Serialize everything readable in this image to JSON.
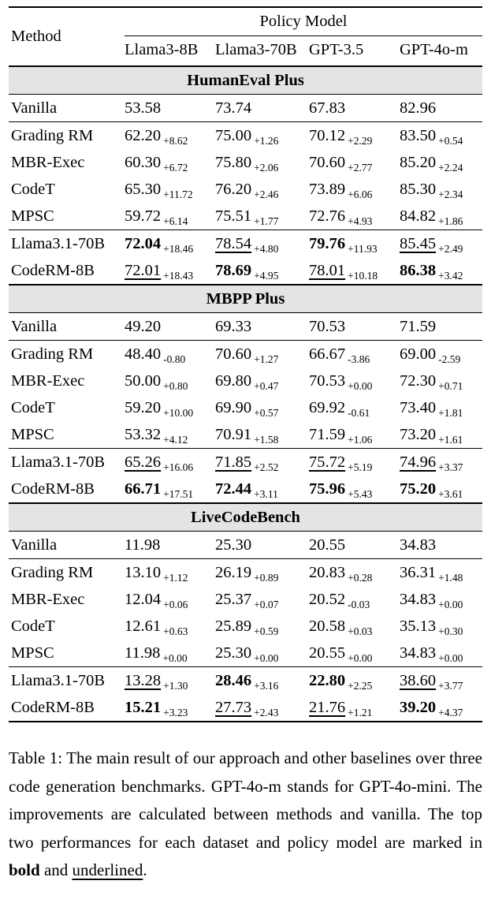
{
  "header": {
    "method_label": "Method",
    "group_label": "Policy Model",
    "columns": [
      "Llama3-8B",
      "Llama3-70B",
      "GPT-3.5",
      "GPT-4o-m"
    ]
  },
  "sections": [
    {
      "title": "HumanEval Plus",
      "groups": [
        {
          "rows": [
            {
              "method": "Vanilla",
              "cells": [
                {
                  "value": "53.58",
                  "delta": null,
                  "style": "plain"
                },
                {
                  "value": "73.74",
                  "delta": null,
                  "style": "plain"
                },
                {
                  "value": "67.83",
                  "delta": null,
                  "style": "plain"
                },
                {
                  "value": "82.96",
                  "delta": null,
                  "style": "plain"
                }
              ]
            }
          ]
        },
        {
          "rows": [
            {
              "method": "Grading RM",
              "cells": [
                {
                  "value": "62.20",
                  "delta": "+8.62",
                  "style": "plain"
                },
                {
                  "value": "75.00",
                  "delta": "+1.26",
                  "style": "plain"
                },
                {
                  "value": "70.12",
                  "delta": "+2.29",
                  "style": "plain"
                },
                {
                  "value": "83.50",
                  "delta": "+0.54",
                  "style": "plain"
                }
              ]
            },
            {
              "method": "MBR-Exec",
              "cells": [
                {
                  "value": "60.30",
                  "delta": "+6.72",
                  "style": "plain"
                },
                {
                  "value": "75.80",
                  "delta": "+2.06",
                  "style": "plain"
                },
                {
                  "value": "70.60",
                  "delta": "+2.77",
                  "style": "plain"
                },
                {
                  "value": "85.20",
                  "delta": "+2.24",
                  "style": "plain"
                }
              ]
            },
            {
              "method": "CodeT",
              "cells": [
                {
                  "value": "65.30",
                  "delta": "+11.72",
                  "style": "plain"
                },
                {
                  "value": "76.20",
                  "delta": "+2.46",
                  "style": "plain"
                },
                {
                  "value": "73.89",
                  "delta": "+6.06",
                  "style": "plain"
                },
                {
                  "value": "85.30",
                  "delta": "+2.34",
                  "style": "plain"
                }
              ]
            },
            {
              "method": "MPSC",
              "cells": [
                {
                  "value": "59.72",
                  "delta": "+6.14",
                  "style": "plain"
                },
                {
                  "value": "75.51",
                  "delta": "+1.77",
                  "style": "plain"
                },
                {
                  "value": "72.76",
                  "delta": "+4.93",
                  "style": "plain"
                },
                {
                  "value": "84.82",
                  "delta": "+1.86",
                  "style": "plain"
                }
              ]
            }
          ]
        },
        {
          "rows": [
            {
              "method": "Llama3.1-70B",
              "cells": [
                {
                  "value": "72.04",
                  "delta": "+18.46",
                  "style": "bold"
                },
                {
                  "value": "78.54",
                  "delta": "+4.80",
                  "style": "underline"
                },
                {
                  "value": "79.76",
                  "delta": "+11.93",
                  "style": "bold"
                },
                {
                  "value": "85.45",
                  "delta": "+2.49",
                  "style": "underline"
                }
              ]
            },
            {
              "method": "CodeRM-8B",
              "cells": [
                {
                  "value": "72.01",
                  "delta": "+18.43",
                  "style": "underline"
                },
                {
                  "value": "78.69",
                  "delta": "+4.95",
                  "style": "bold"
                },
                {
                  "value": "78.01",
                  "delta": "+10.18",
                  "style": "underline"
                },
                {
                  "value": "86.38",
                  "delta": "+3.42",
                  "style": "bold"
                }
              ]
            }
          ]
        }
      ]
    },
    {
      "title": "MBPP Plus",
      "groups": [
        {
          "rows": [
            {
              "method": "Vanilla",
              "cells": [
                {
                  "value": "49.20",
                  "delta": null,
                  "style": "plain"
                },
                {
                  "value": "69.33",
                  "delta": null,
                  "style": "plain"
                },
                {
                  "value": "70.53",
                  "delta": null,
                  "style": "plain"
                },
                {
                  "value": "71.59",
                  "delta": null,
                  "style": "plain"
                }
              ]
            }
          ]
        },
        {
          "rows": [
            {
              "method": "Grading RM",
              "cells": [
                {
                  "value": "48.40",
                  "delta": "-0.80",
                  "style": "plain"
                },
                {
                  "value": "70.60",
                  "delta": "+1.27",
                  "style": "plain"
                },
                {
                  "value": "66.67",
                  "delta": "-3.86",
                  "style": "plain"
                },
                {
                  "value": "69.00",
                  "delta": "-2.59",
                  "style": "plain"
                }
              ]
            },
            {
              "method": "MBR-Exec",
              "cells": [
                {
                  "value": "50.00",
                  "delta": "+0.80",
                  "style": "plain"
                },
                {
                  "value": "69.80",
                  "delta": "+0.47",
                  "style": "plain"
                },
                {
                  "value": "70.53",
                  "delta": "+0.00",
                  "style": "plain"
                },
                {
                  "value": "72.30",
                  "delta": "+0.71",
                  "style": "plain"
                }
              ]
            },
            {
              "method": "CodeT",
              "cells": [
                {
                  "value": "59.20",
                  "delta": "+10.00",
                  "style": "plain"
                },
                {
                  "value": "69.90",
                  "delta": "+0.57",
                  "style": "plain"
                },
                {
                  "value": "69.92",
                  "delta": "-0.61",
                  "style": "plain"
                },
                {
                  "value": "73.40",
                  "delta": "+1.81",
                  "style": "plain"
                }
              ]
            },
            {
              "method": "MPSC",
              "cells": [
                {
                  "value": "53.32",
                  "delta": "+4.12",
                  "style": "plain"
                },
                {
                  "value": "70.91",
                  "delta": "+1.58",
                  "style": "plain"
                },
                {
                  "value": "71.59",
                  "delta": "+1.06",
                  "style": "plain"
                },
                {
                  "value": "73.20",
                  "delta": "+1.61",
                  "style": "plain"
                }
              ]
            }
          ]
        },
        {
          "rows": [
            {
              "method": "Llama3.1-70B",
              "cells": [
                {
                  "value": "65.26",
                  "delta": "+16.06",
                  "style": "underline"
                },
                {
                  "value": "71.85",
                  "delta": "+2.52",
                  "style": "underline"
                },
                {
                  "value": "75.72",
                  "delta": "+5.19",
                  "style": "underline"
                },
                {
                  "value": "74.96",
                  "delta": "+3.37",
                  "style": "underline"
                }
              ]
            },
            {
              "method": "CodeRM-8B",
              "cells": [
                {
                  "value": "66.71",
                  "delta": "+17.51",
                  "style": "bold"
                },
                {
                  "value": "72.44",
                  "delta": "+3.11",
                  "style": "bold"
                },
                {
                  "value": "75.96",
                  "delta": "+5.43",
                  "style": "bold"
                },
                {
                  "value": "75.20",
                  "delta": "+3.61",
                  "style": "bold"
                }
              ]
            }
          ]
        }
      ]
    },
    {
      "title": "LiveCodeBench",
      "groups": [
        {
          "rows": [
            {
              "method": "Vanilla",
              "cells": [
                {
                  "value": "11.98",
                  "delta": null,
                  "style": "plain"
                },
                {
                  "value": "25.30",
                  "delta": null,
                  "style": "plain"
                },
                {
                  "value": "20.55",
                  "delta": null,
                  "style": "plain"
                },
                {
                  "value": "34.83",
                  "delta": null,
                  "style": "plain"
                }
              ]
            }
          ]
        },
        {
          "rows": [
            {
              "method": "Grading RM",
              "cells": [
                {
                  "value": "13.10",
                  "delta": "+1.12",
                  "style": "plain"
                },
                {
                  "value": "26.19",
                  "delta": "+0.89",
                  "style": "plain"
                },
                {
                  "value": "20.83",
                  "delta": "+0.28",
                  "style": "plain"
                },
                {
                  "value": "36.31",
                  "delta": "+1.48",
                  "style": "plain"
                }
              ]
            },
            {
              "method": "MBR-Exec",
              "cells": [
                {
                  "value": "12.04",
                  "delta": "+0.06",
                  "style": "plain"
                },
                {
                  "value": "25.37",
                  "delta": "+0.07",
                  "style": "plain"
                },
                {
                  "value": "20.52",
                  "delta": "-0.03",
                  "style": "plain"
                },
                {
                  "value": "34.83",
                  "delta": "+0.00",
                  "style": "plain"
                }
              ]
            },
            {
              "method": "CodeT",
              "cells": [
                {
                  "value": "12.61",
                  "delta": "+0.63",
                  "style": "plain"
                },
                {
                  "value": "25.89",
                  "delta": "+0.59",
                  "style": "plain"
                },
                {
                  "value": "20.58",
                  "delta": "+0.03",
                  "style": "plain"
                },
                {
                  "value": "35.13",
                  "delta": "+0.30",
                  "style": "plain"
                }
              ]
            },
            {
              "method": "MPSC",
              "cells": [
                {
                  "value": "11.98",
                  "delta": "+0.00",
                  "style": "plain"
                },
                {
                  "value": "25.30",
                  "delta": "+0.00",
                  "style": "plain"
                },
                {
                  "value": "20.55",
                  "delta": "+0.00",
                  "style": "plain"
                },
                {
                  "value": "34.83",
                  "delta": "+0.00",
                  "style": "plain"
                }
              ]
            }
          ]
        },
        {
          "rows": [
            {
              "method": "Llama3.1-70B",
              "cells": [
                {
                  "value": "13.28",
                  "delta": "+1.30",
                  "style": "underline"
                },
                {
                  "value": "28.46",
                  "delta": "+3.16",
                  "style": "bold"
                },
                {
                  "value": "22.80",
                  "delta": "+2.25",
                  "style": "bold"
                },
                {
                  "value": "38.60",
                  "delta": "+3.77",
                  "style": "underline"
                }
              ]
            },
            {
              "method": "CodeRM-8B",
              "cells": [
                {
                  "value": "15.21",
                  "delta": "+3.23",
                  "style": "bold"
                },
                {
                  "value": "27.73",
                  "delta": "+2.43",
                  "style": "underline"
                },
                {
                  "value": "21.76",
                  "delta": "+1.21",
                  "style": "underline"
                },
                {
                  "value": "39.20",
                  "delta": "+4.37",
                  "style": "bold"
                }
              ]
            }
          ]
        }
      ]
    }
  ],
  "caption": {
    "segments": [
      {
        "text": "Table 1: The main result of our approach and other baselines over three code generation benchmarks. GPT-4o-m stands for GPT-4o-mini. The improvements are calculated between methods and vanilla. The top two performances for each dataset and policy model are marked in ",
        "style": "plain"
      },
      {
        "text": "bold",
        "style": "bold"
      },
      {
        "text": " and ",
        "style": "plain"
      },
      {
        "text": "underlined",
        "style": "underline"
      },
      {
        "text": ".",
        "style": "plain"
      }
    ]
  }
}
